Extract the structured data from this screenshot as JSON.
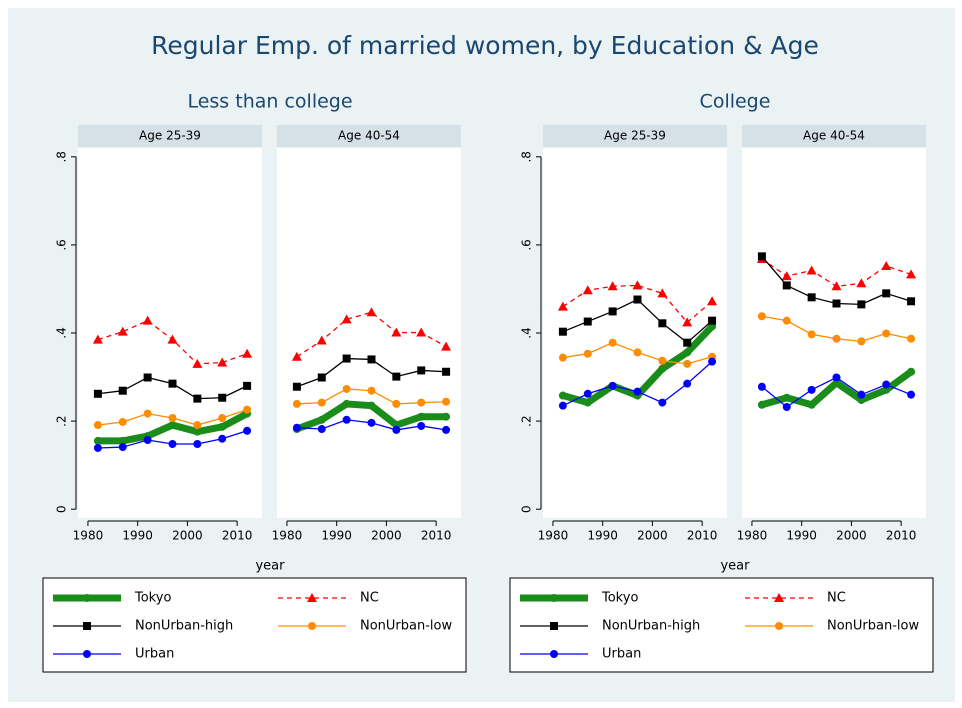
{
  "chart_data": {
    "type": "line",
    "title": "Regular Emp. of married women, by Education & Age",
    "x": [
      1982,
      1987,
      1992,
      1997,
      2002,
      2007,
      2012
    ],
    "xlim": [
      1978,
      2015
    ],
    "xticks": [
      1980,
      1990,
      2000,
      2010
    ],
    "ylim": [
      -0.02,
      0.82
    ],
    "yticks": [
      0,
      {
        "value": 0.2,
        "label": ".2"
      },
      {
        "value": 0.4,
        "label": ".4"
      },
      {
        "value": 0.6,
        "label": ".6"
      },
      {
        "value": 0.8,
        "label": ".8"
      }
    ],
    "series": [
      {
        "name": "Tokyo",
        "color": "#1a8c1a",
        "marker": "circle",
        "width": 7
      },
      {
        "name": "NC",
        "color": "#ff0000",
        "marker": "triangle",
        "dash": true,
        "width": 1.3
      },
      {
        "name": "NonUrban-high",
        "color": "#000000",
        "marker": "square",
        "width": 1.3
      },
      {
        "name": "NonUrban-low",
        "color": "#ff8c00",
        "marker": "circle",
        "width": 1.3
      },
      {
        "name": "Urban",
        "color": "#0000ff",
        "marker": "circle",
        "width": 1.3
      }
    ],
    "groups": [
      {
        "title": "Less than college",
        "xlabel": "year",
        "panels": [
          {
            "title": "Age 25-39",
            "values": [
              [
                0.155,
                0.155,
                0.166,
                0.191,
                0.176,
                0.187,
                0.217
              ],
              [
                0.385,
                0.403,
                0.428,
                0.385,
                0.33,
                0.333,
                0.353
              ],
              [
                0.262,
                0.269,
                0.299,
                0.285,
                0.251,
                0.253,
                0.28
              ],
              [
                0.191,
                0.198,
                0.217,
                0.207,
                0.191,
                0.207,
                0.226
              ],
              [
                0.139,
                0.141,
                0.157,
                0.148,
                0.148,
                0.16,
                0.178
              ]
            ]
          },
          {
            "title": "Age 40-54",
            "values": [
              [
                0.182,
                0.203,
                0.239,
                0.235,
                0.191,
                0.21,
                0.21
              ],
              [
                0.346,
                0.383,
                0.431,
                0.447,
                0.401,
                0.401,
                0.369
              ],
              [
                0.278,
                0.299,
                0.342,
                0.34,
                0.301,
                0.315,
                0.312
              ],
              [
                0.239,
                0.242,
                0.273,
                0.269,
                0.239,
                0.242,
                0.244
              ],
              [
                0.185,
                0.182,
                0.203,
                0.196,
                0.18,
                0.189,
                0.18
              ]
            ]
          }
        ]
      },
      {
        "title": "College",
        "xlabel": "year",
        "panels": [
          {
            "title": "Age 25-39",
            "values": [
              [
                0.258,
                0.242,
                0.28,
                0.258,
                0.319,
                0.356,
                0.415
              ],
              [
                0.46,
                0.497,
                0.506,
                0.508,
                0.49,
                0.424,
                0.472
              ],
              [
                0.403,
                0.426,
                0.449,
                0.476,
                0.422,
                0.378,
                0.428
              ],
              [
                0.344,
                0.353,
                0.378,
                0.356,
                0.337,
                0.33,
                0.346
              ],
              [
                0.235,
                0.262,
                0.28,
                0.267,
                0.242,
                0.285,
                0.335
              ]
            ]
          },
          {
            "title": "Age 40-54",
            "values": [
              [
                0.237,
                0.253,
                0.237,
                0.287,
                0.248,
                0.271,
                0.312
              ],
              [
                0.568,
                0.529,
                0.542,
                0.506,
                0.513,
                0.552,
                0.533
              ],
              [
                0.574,
                0.508,
                0.481,
                0.467,
                0.465,
                0.49,
                0.472
              ],
              [
                0.438,
                0.428,
                0.397,
                0.387,
                0.381,
                0.399,
                0.387
              ],
              [
                0.278,
                0.232,
                0.271,
                0.299,
                0.26,
                0.283,
                0.26
              ]
            ]
          }
        ]
      }
    ]
  }
}
